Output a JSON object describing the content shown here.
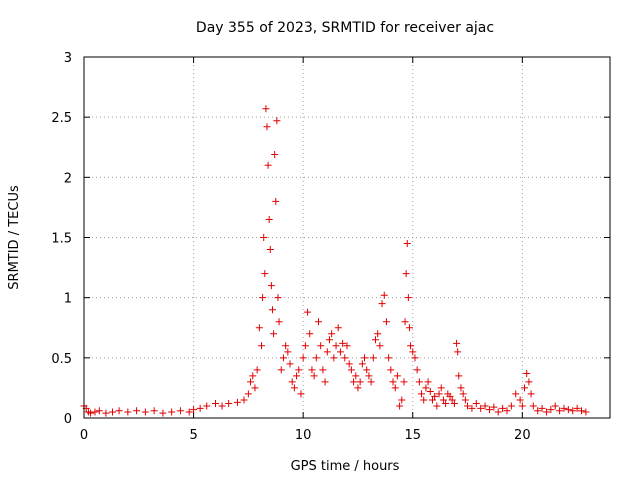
{
  "chart_data": {
    "type": "scatter",
    "title": "Day 355 of 2023, SRMTID for receiver ajac",
    "xlabel": "GPS time / hours",
    "ylabel": "SRMTID / TECUs",
    "xlim": [
      0,
      24
    ],
    "ylim": [
      0,
      3
    ],
    "xticks": [
      0,
      5,
      10,
      15,
      20
    ],
    "yticks": [
      0,
      0.5,
      1,
      1.5,
      2,
      2.5,
      3
    ],
    "xtick_labels": [
      "0",
      "5",
      "10",
      "15",
      "20"
    ],
    "ytick_labels": [
      "0",
      "0.5",
      "1",
      "1.5",
      "2",
      "2.5",
      "3"
    ],
    "grid": true,
    "marker": "+",
    "color": "#e00000",
    "series": [
      {
        "name": "SRMTID",
        "x": [
          0.0,
          0.1,
          0.2,
          0.3,
          0.5,
          0.7,
          1.0,
          1.3,
          1.6,
          2.0,
          2.4,
          2.8,
          3.2,
          3.6,
          4.0,
          4.4,
          4.8,
          5.0,
          5.3,
          5.6,
          6.0,
          6.3,
          6.6,
          7.0,
          7.3,
          7.5,
          7.6,
          7.7,
          7.8,
          7.9,
          8.0,
          8.1,
          8.15,
          8.2,
          8.25,
          8.3,
          8.35,
          8.4,
          8.45,
          8.5,
          8.55,
          8.6,
          8.65,
          8.7,
          8.75,
          8.8,
          8.85,
          8.9,
          9.0,
          9.1,
          9.2,
          9.3,
          9.4,
          9.5,
          9.6,
          9.7,
          9.8,
          9.9,
          10.0,
          10.1,
          10.2,
          10.3,
          10.4,
          10.5,
          10.6,
          10.7,
          10.8,
          10.9,
          11.0,
          11.1,
          11.2,
          11.3,
          11.4,
          11.5,
          11.6,
          11.7,
          11.8,
          11.9,
          12.0,
          12.1,
          12.2,
          12.3,
          12.4,
          12.5,
          12.6,
          12.7,
          12.8,
          12.9,
          13.0,
          13.1,
          13.2,
          13.3,
          13.4,
          13.5,
          13.6,
          13.7,
          13.8,
          13.9,
          14.0,
          14.1,
          14.2,
          14.3,
          14.4,
          14.5,
          14.6,
          14.65,
          14.7,
          14.75,
          14.8,
          14.85,
          14.9,
          15.0,
          15.1,
          15.2,
          15.3,
          15.4,
          15.5,
          15.6,
          15.7,
          15.8,
          15.9,
          16.0,
          16.1,
          16.2,
          16.3,
          16.4,
          16.5,
          16.6,
          16.7,
          16.8,
          16.9,
          17.0,
          17.05,
          17.1,
          17.2,
          17.3,
          17.4,
          17.5,
          17.7,
          17.9,
          18.1,
          18.3,
          18.5,
          18.7,
          18.9,
          19.1,
          19.3,
          19.5,
          19.7,
          19.9,
          20.0,
          20.1,
          20.2,
          20.3,
          20.4,
          20.5,
          20.7,
          20.9,
          21.1,
          21.3,
          21.5,
          21.7,
          21.9,
          22.1,
          22.3,
          22.5,
          22.7,
          22.9
        ],
        "y": [
          0.1,
          0.08,
          0.05,
          0.04,
          0.05,
          0.06,
          0.04,
          0.05,
          0.06,
          0.05,
          0.06,
          0.05,
          0.06,
          0.04,
          0.05,
          0.06,
          0.05,
          0.07,
          0.08,
          0.1,
          0.12,
          0.1,
          0.12,
          0.13,
          0.15,
          0.2,
          0.3,
          0.35,
          0.25,
          0.4,
          0.75,
          0.6,
          1.0,
          1.5,
          1.2,
          2.57,
          2.42,
          2.1,
          1.65,
          1.4,
          1.1,
          0.9,
          0.7,
          2.19,
          1.8,
          2.47,
          1.0,
          0.8,
          0.4,
          0.5,
          0.6,
          0.55,
          0.45,
          0.3,
          0.25,
          0.35,
          0.4,
          0.2,
          0.5,
          0.6,
          0.88,
          0.7,
          0.4,
          0.35,
          0.5,
          0.8,
          0.6,
          0.4,
          0.3,
          0.55,
          0.65,
          0.7,
          0.5,
          0.6,
          0.75,
          0.55,
          0.62,
          0.5,
          0.6,
          0.45,
          0.4,
          0.3,
          0.35,
          0.25,
          0.3,
          0.45,
          0.5,
          0.4,
          0.35,
          0.3,
          0.5,
          0.65,
          0.7,
          0.6,
          0.95,
          1.02,
          0.8,
          0.5,
          0.4,
          0.3,
          0.25,
          0.35,
          0.1,
          0.15,
          0.3,
          0.8,
          1.2,
          1.45,
          1.0,
          0.75,
          0.6,
          0.55,
          0.5,
          0.4,
          0.3,
          0.2,
          0.15,
          0.25,
          0.3,
          0.22,
          0.15,
          0.18,
          0.1,
          0.2,
          0.25,
          0.15,
          0.12,
          0.2,
          0.18,
          0.15,
          0.12,
          0.62,
          0.55,
          0.35,
          0.25,
          0.2,
          0.15,
          0.1,
          0.08,
          0.12,
          0.08,
          0.1,
          0.07,
          0.09,
          0.05,
          0.08,
          0.06,
          0.1,
          0.2,
          0.15,
          0.1,
          0.25,
          0.37,
          0.3,
          0.2,
          0.1,
          0.06,
          0.08,
          0.05,
          0.07,
          0.1,
          0.06,
          0.08,
          0.07,
          0.06,
          0.08,
          0.06,
          0.05
        ]
      }
    ]
  }
}
